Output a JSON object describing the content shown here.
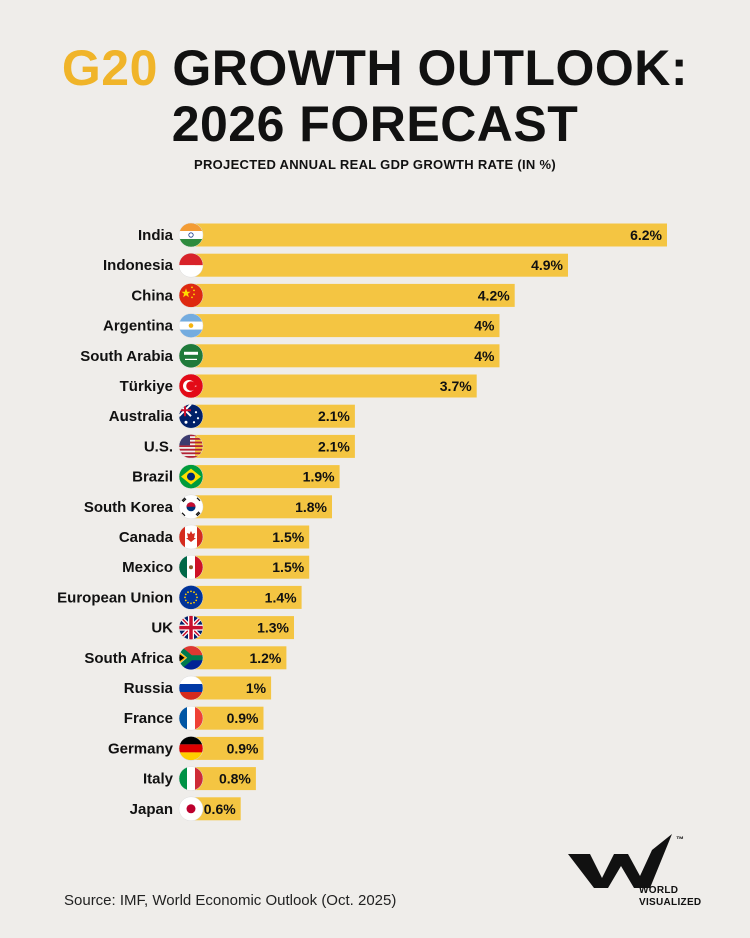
{
  "title": {
    "highlight": "G20",
    "rest_line1": " GROWTH OUTLOOK:",
    "line2": "2026 FORECAST"
  },
  "subtitle": "PROJECTED ANNUAL REAL GDP GROWTH RATE (IN %)",
  "source": "Source: IMF, World Economic Outlook (Oct. 2025)",
  "logo": {
    "mark": "™",
    "line1": "WORLD",
    "line2": "VISUALIZED"
  },
  "colors": {
    "bar": "#f4c542",
    "highlight": "#f0b429",
    "background": "#efedea",
    "text": "#111111"
  },
  "chart_data": {
    "type": "bar",
    "orientation": "horizontal",
    "title": "G20 GROWTH OUTLOOK: 2026 FORECAST",
    "subtitle": "PROJECTED ANNUAL REAL GDP GROWTH RATE (IN %)",
    "xlim": [
      0,
      6.2
    ],
    "unit": "%",
    "categories": [
      "India",
      "Indonesia",
      "China",
      "Argentina",
      "South Arabia",
      "Türkiye",
      "Australia",
      "U.S.",
      "Brazil",
      "South Korea",
      "Canada",
      "Mexico",
      "European Union",
      "UK",
      "South Africa",
      "Russia",
      "France",
      "Germany",
      "Italy",
      "Japan"
    ],
    "values": [
      6.2,
      4.9,
      4.2,
      4,
      4,
      3.7,
      2.1,
      2.1,
      1.9,
      1.8,
      1.5,
      1.5,
      1.4,
      1.3,
      1.2,
      1,
      0.9,
      0.9,
      0.8,
      0.6
    ],
    "labels": [
      "6.2%",
      "4.9%",
      "4.2%",
      "4%",
      "4%",
      "3.7%",
      "2.1%",
      "2.1%",
      "1.9%",
      "1.8%",
      "1.5%",
      "1.5%",
      "1.4%",
      "1.3%",
      "1.2%",
      "1%",
      "0.9%",
      "0.9%",
      "0.8%",
      "0.6%"
    ],
    "flags": [
      "india-flag-icon",
      "indonesia-flag-icon",
      "china-flag-icon",
      "argentina-flag-icon",
      "saudi-arabia-flag-icon",
      "turkiye-flag-icon",
      "australia-flag-icon",
      "us-flag-icon",
      "brazil-flag-icon",
      "south-korea-flag-icon",
      "canada-flag-icon",
      "mexico-flag-icon",
      "european-union-flag-icon",
      "uk-flag-icon",
      "south-africa-flag-icon",
      "russia-flag-icon",
      "france-flag-icon",
      "germany-flag-icon",
      "italy-flag-icon",
      "japan-flag-icon"
    ]
  }
}
